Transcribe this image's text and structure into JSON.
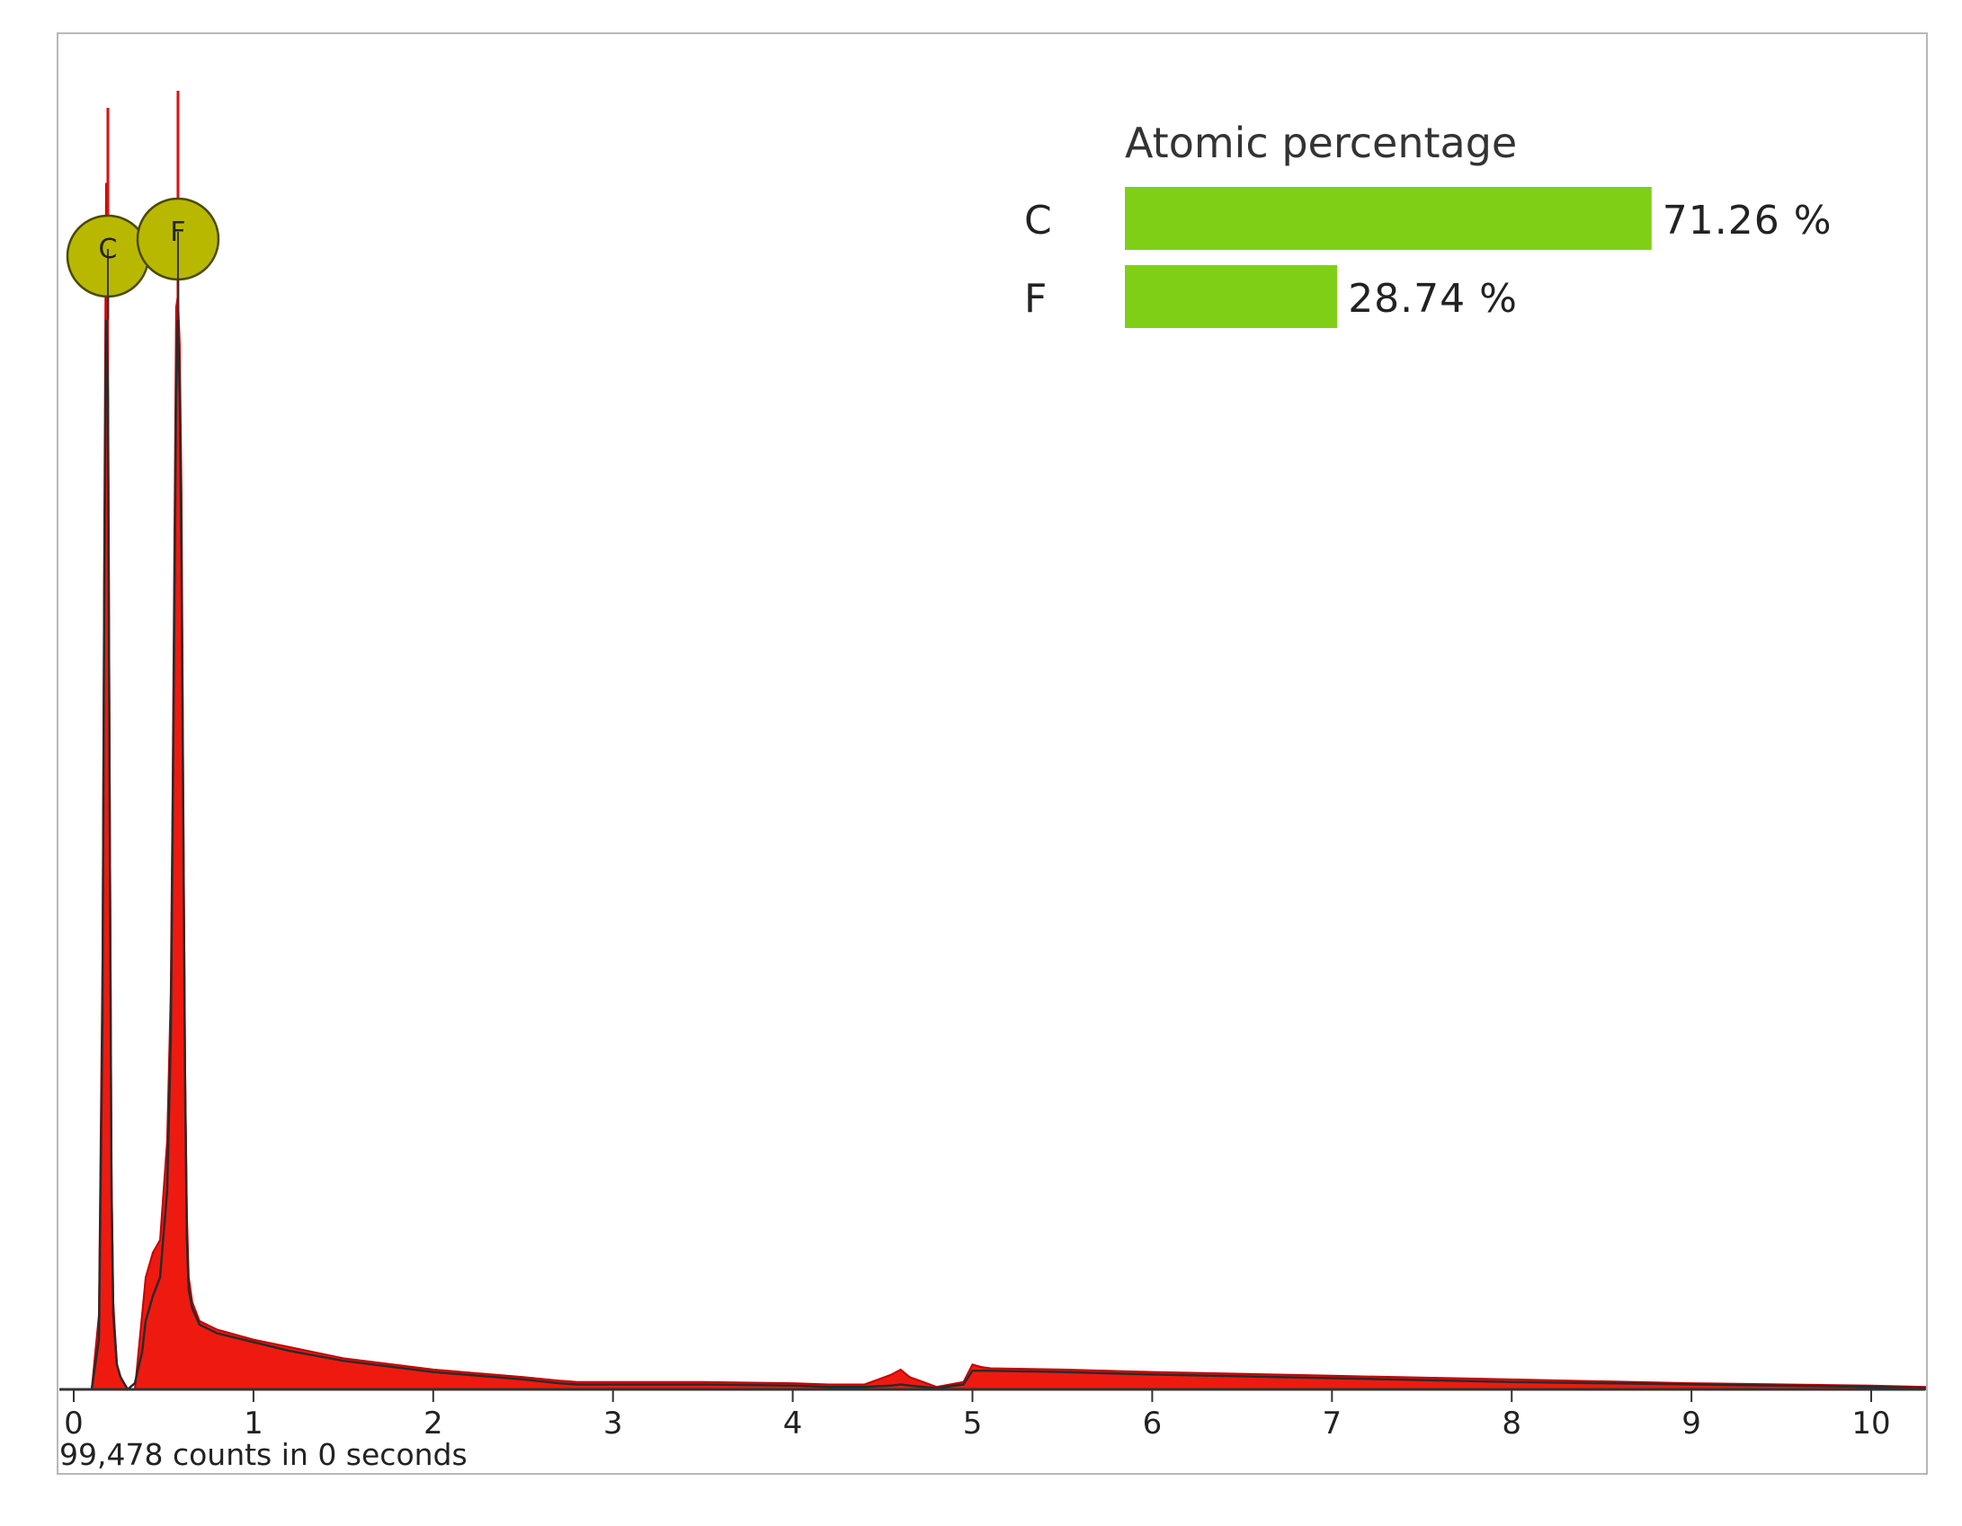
{
  "chart_data": {
    "type": "area",
    "title": "",
    "xlabel": "",
    "ylabel": "",
    "xlim": [
      0,
      10.3
    ],
    "ylim": [
      0,
      1.0
    ],
    "x_ticks": [
      0,
      1,
      2,
      3,
      4,
      5,
      6,
      7,
      8,
      9,
      10
    ],
    "x_tick_labels": [
      "0",
      "1",
      "2",
      "3",
      "4",
      "5",
      "6",
      "7",
      "8",
      "9",
      "10"
    ],
    "grid": false,
    "counts_label": "99,478 counts in 0 seconds",
    "series": [
      {
        "color": "#ee1a10",
        "x": [
          0.0,
          0.1,
          0.14,
          0.16,
          0.17,
          0.18,
          0.19,
          0.2,
          0.21,
          0.22,
          0.24,
          0.26,
          0.3,
          0.34,
          0.38,
          0.4,
          0.44,
          0.48,
          0.52,
          0.54,
          0.55,
          0.56,
          0.57,
          0.58,
          0.59,
          0.6,
          0.61,
          0.62,
          0.63,
          0.64,
          0.66,
          0.7,
          0.8,
          1.0,
          1.2,
          1.5,
          2.0,
          2.5,
          2.7,
          2.8,
          3.0,
          3.5,
          4.0,
          4.2,
          4.4,
          4.55,
          4.6,
          4.65,
          4.8,
          4.95,
          5.0,
          5.05,
          5.1,
          5.5,
          6.0,
          7.0,
          8.0,
          9.0,
          10.0,
          10.3
        ],
        "y": [
          0.0,
          0.0,
          0.06,
          0.35,
          0.7,
          0.97,
          0.86,
          0.5,
          0.18,
          0.07,
          0.02,
          0.01,
          0.0,
          0.0,
          0.06,
          0.09,
          0.11,
          0.12,
          0.2,
          0.32,
          0.48,
          0.68,
          0.87,
          0.88,
          0.84,
          0.72,
          0.48,
          0.26,
          0.14,
          0.09,
          0.07,
          0.055,
          0.048,
          0.04,
          0.034,
          0.025,
          0.016,
          0.01,
          0.007,
          0.006,
          0.006,
          0.006,
          0.005,
          0.004,
          0.004,
          0.012,
          0.016,
          0.01,
          0.002,
          0.006,
          0.02,
          0.018,
          0.017,
          0.016,
          0.014,
          0.011,
          0.008,
          0.005,
          0.003,
          0.002
        ]
      },
      {
        "color": "#2a2a2a",
        "x": [
          0.0,
          0.1,
          0.14,
          0.16,
          0.17,
          0.18,
          0.19,
          0.2,
          0.21,
          0.22,
          0.24,
          0.26,
          0.3,
          0.34,
          0.38,
          0.4,
          0.44,
          0.48,
          0.52,
          0.54,
          0.55,
          0.56,
          0.57,
          0.58,
          0.59,
          0.6,
          0.61,
          0.62,
          0.63,
          0.64,
          0.66,
          0.7,
          0.8,
          1.0,
          1.2,
          1.5,
          2.0,
          2.5,
          2.7,
          2.8,
          3.0,
          3.5,
          4.0,
          4.2,
          4.4,
          4.55,
          4.6,
          4.65,
          4.8,
          4.95,
          5.0,
          5.05,
          5.1,
          5.5,
          6.0,
          7.0,
          8.0,
          9.0,
          10.0,
          10.3
        ],
        "y": [
          0.0,
          0.0,
          0.04,
          0.3,
          0.64,
          0.86,
          0.8,
          0.46,
          0.16,
          0.06,
          0.02,
          0.01,
          0.0,
          0.005,
          0.03,
          0.055,
          0.075,
          0.09,
          0.16,
          0.28,
          0.44,
          0.62,
          0.8,
          0.86,
          0.8,
          0.66,
          0.44,
          0.24,
          0.12,
          0.08,
          0.065,
          0.052,
          0.045,
          0.038,
          0.031,
          0.023,
          0.014,
          0.008,
          0.005,
          0.004,
          0.004,
          0.004,
          0.003,
          0.002,
          0.002,
          0.003,
          0.004,
          0.003,
          0.001,
          0.004,
          0.015,
          0.015,
          0.015,
          0.014,
          0.012,
          0.009,
          0.006,
          0.004,
          0.002,
          0.001
        ]
      }
    ],
    "peak_markers": [
      {
        "label": "C",
        "x": 0.19,
        "y": 0.86
      },
      {
        "label": "F",
        "x": 0.58,
        "y": 0.86
      }
    ],
    "inset": {
      "type": "bar",
      "orientation": "horizontal",
      "title": "Atomic percentage",
      "categories": [
        "C",
        "F"
      ],
      "values": [
        71.26,
        28.74
      ],
      "value_labels": [
        "71.26 %",
        "28.74 %"
      ],
      "color": "#7fcf17"
    },
    "colors": {
      "spectrum_fill": "#ee1a10",
      "fit_line": "#2a2a2a",
      "marker_fill": "#b9b800",
      "bar": "#7fcf17"
    }
  }
}
